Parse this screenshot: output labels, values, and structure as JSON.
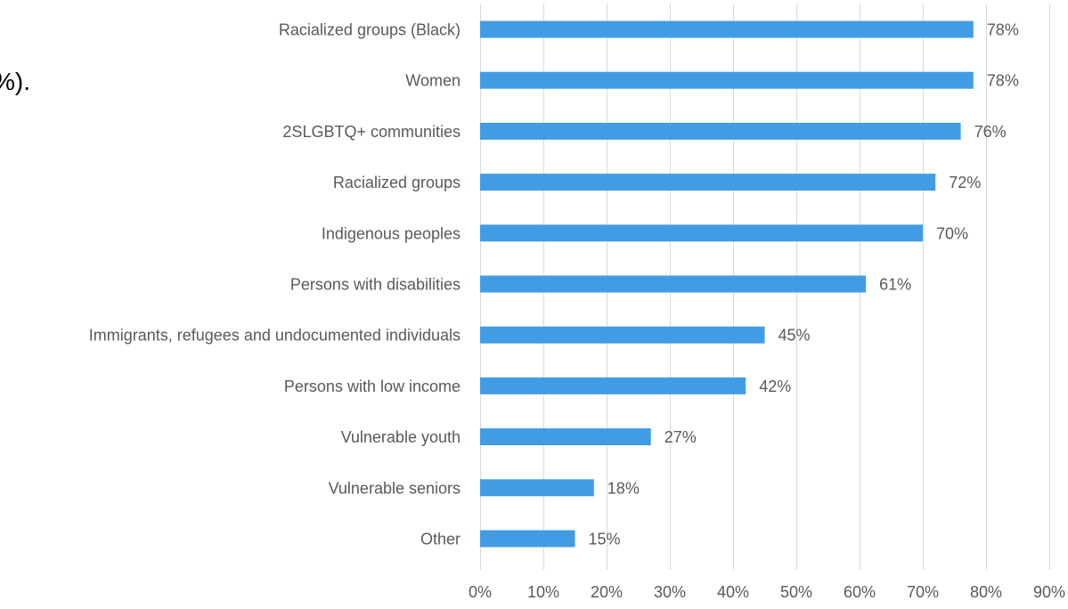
{
  "fragment_text": "%).",
  "chart_data": {
    "type": "bar",
    "orientation": "horizontal",
    "categories": [
      "Racialized groups (Black)",
      "Women",
      "2SLGBTQ+ communities",
      "Racialized groups",
      "Indigenous peoples",
      "Persons with disabilities",
      "Immigrants, refugees and undocumented individuals",
      "Persons with low income",
      "Vulnerable youth",
      "Vulnerable seniors",
      "Other"
    ],
    "values": [
      78,
      78,
      76,
      72,
      70,
      61,
      45,
      42,
      27,
      18,
      15
    ],
    "data_labels": [
      "78%",
      "78%",
      "76%",
      "72%",
      "70%",
      "61%",
      "45%",
      "42%",
      "27%",
      "18%",
      "15%"
    ],
    "xlim": [
      0,
      90
    ],
    "xticks": [
      0,
      10,
      20,
      30,
      40,
      50,
      60,
      70,
      80,
      90
    ],
    "xtick_labels": [
      "0%",
      "10%",
      "20%",
      "30%",
      "40%",
      "50%",
      "60%",
      "70%",
      "80%",
      "90%"
    ],
    "title": "",
    "xlabel": "",
    "ylabel": "",
    "grid": true,
    "legend": false,
    "colors": {
      "bar": "#419CE4",
      "grid": "#D9D9D9",
      "label": "#595959"
    }
  }
}
